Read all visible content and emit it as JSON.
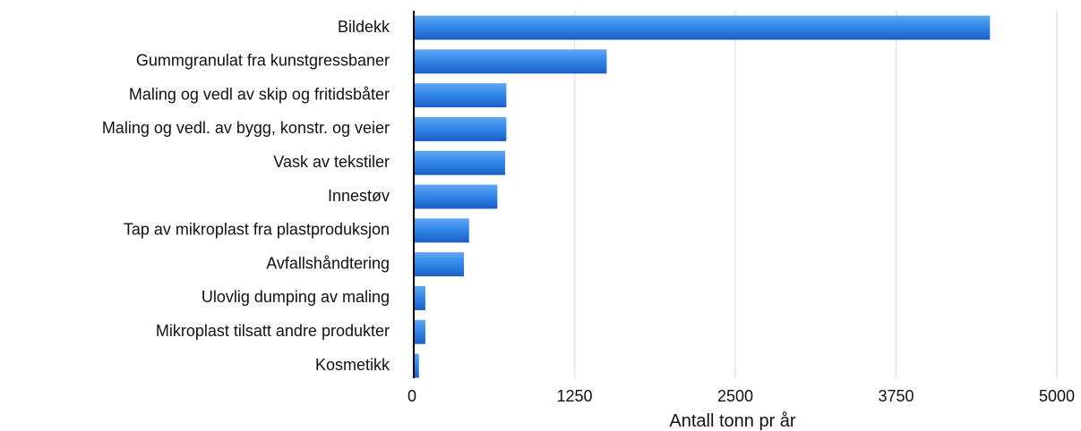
{
  "chart_data": {
    "type": "bar",
    "orientation": "horizontal",
    "title": "",
    "xlabel": "Antall tonn pr år",
    "ylabel": "",
    "xlim": [
      0,
      5000
    ],
    "xticks": [
      "0",
      "1250",
      "2500",
      "3750",
      "5000"
    ],
    "grid": true,
    "legend": "none",
    "bar_color": "#2f7fe0",
    "categories": [
      "Bildekk",
      "Gummgranulat fra kunstgressbaner",
      "Maling og vedl av skip og fritidsbåter",
      "Maling og vedl. av bygg, konstr. og veier",
      "Vask av tekstiler",
      "Innestøv",
      "Tap av mikroplast fra plastproduksjon",
      "Avfallshåndtering",
      "Ulovlig dumping av maling",
      "Mikroplast tilsatt andre produkter",
      "Kosmetikk"
    ],
    "values": [
      4480,
      1500,
      720,
      720,
      710,
      650,
      430,
      390,
      90,
      90,
      40
    ]
  }
}
